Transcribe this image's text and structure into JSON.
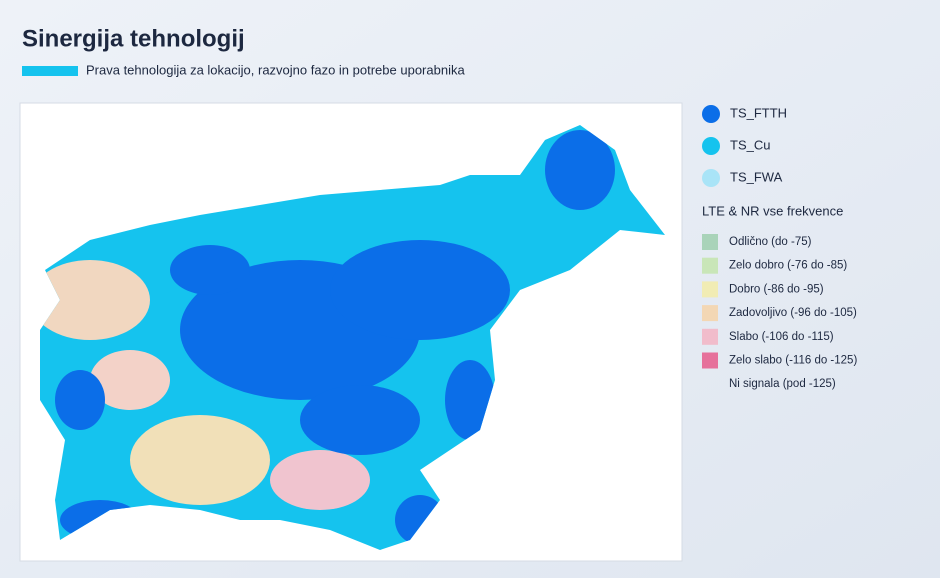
{
  "header": {
    "title": "Sinergija tehnologij",
    "subtitle": "Prava tehnologija za lokacijo, razvojno fazo in potrebe uporabnika"
  },
  "legend": {
    "technologies": [
      {
        "label": "TS_FTTH",
        "color": "#0b6ee8"
      },
      {
        "label": "TS_Cu",
        "color": "#15c3ee"
      },
      {
        "label": "TS_FWA",
        "color": "#a9e4f7"
      }
    ],
    "signal_title": "LTE & NR vse frekvence",
    "signal_levels": [
      {
        "label": "Odlično (do -75)",
        "color": "#a9d3b9"
      },
      {
        "label": "Zelo dobro (-76 do -85)",
        "color": "#c9e6b8"
      },
      {
        "label": "Dobro (-86 do -95)",
        "color": "#f1ecb4"
      },
      {
        "label": "Zadovoljivo (-96 do -105)",
        "color": "#f3d7b4"
      },
      {
        "label": "Slabo (-106 do -115)",
        "color": "#f1bccb"
      },
      {
        "label": "Zelo slabo (-116 do -125)",
        "color": "#e6719b"
      },
      {
        "label": "Ni signala (pod -125)"
      }
    ]
  }
}
